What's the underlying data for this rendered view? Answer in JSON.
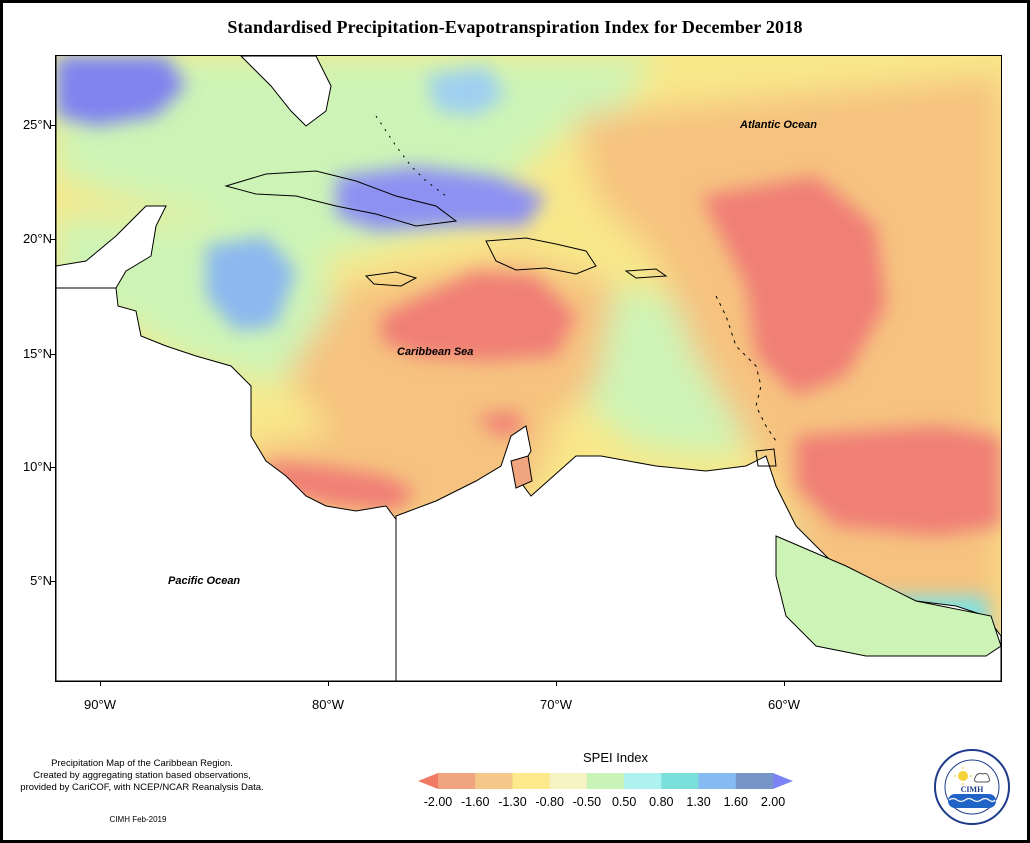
{
  "title": "Standardised Precipitation-Evapotranspiration Index for December 2018",
  "map": {
    "lat_ticks": [
      "25°N",
      "20°N",
      "15°N",
      "10°N",
      "5°N"
    ],
    "lon_ticks": [
      "90°W",
      "80°W",
      "70°W",
      "60°W"
    ],
    "labels": {
      "atlantic": "Atlantic Ocean",
      "caribbean": "Caribbean Sea",
      "pacific": "Pacific Ocean"
    }
  },
  "legend": {
    "title": "SPEI Index",
    "values": [
      "-2.00",
      "-1.60",
      "-1.30",
      "-0.80",
      "-0.50",
      "0.50",
      "0.80",
      "1.30",
      "1.60",
      "2.00"
    ],
    "colors": [
      "#f07a64",
      "#f0a57f",
      "#f5c88a",
      "#fbe98c",
      "#f6f4c2",
      "#caf3b8",
      "#aef2f0",
      "#7be0dc",
      "#86baf3",
      "#7596c6",
      "#7b83f5"
    ]
  },
  "credit": {
    "lines": [
      "Precipitation Map of the Caribbean Region.",
      "Created by aggregating station based observations,",
      "provided by CariCOF, with NCEP/NCAR Reanalysis Data."
    ],
    "date": "CIMH Feb-2019"
  },
  "logo": {
    "name": "CIMH"
  }
}
